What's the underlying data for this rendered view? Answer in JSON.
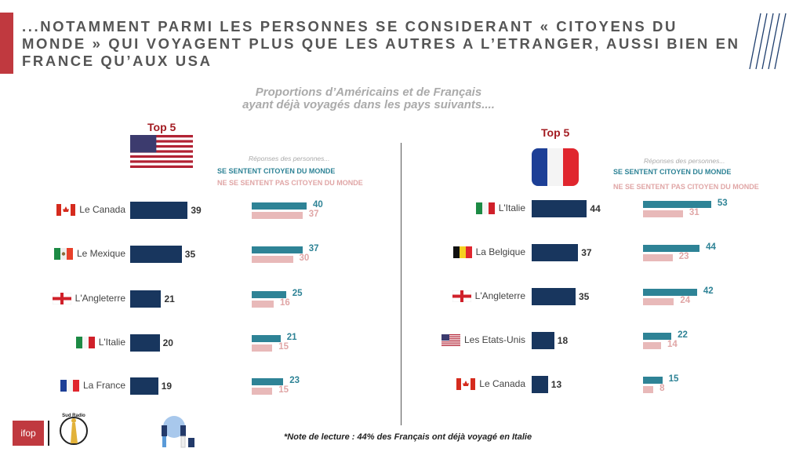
{
  "header": {
    "title": "...NOTAMMENT PARMI LES PERSONNES SE CONSIDERANT « CITOYENS DU MONDE » QUI VOYAGENT PLUS QUE LES AUTRES A L’ETRANGER, AUSSI BIEN EN FRANCE QU’AUX USA",
    "subtitle_line1": "Proportions d’Américains et de Français",
    "subtitle_line2": "ayant déjà voyagés dans les pays suivants...."
  },
  "colors": {
    "accent": "#c0393f",
    "bar": "#18365e",
    "citizen": "#2e8396",
    "non_citizen": "#e8b9b9",
    "top5": "#a31c22"
  },
  "chart_data": [
    {
      "type": "bar",
      "orientation": "horizontal",
      "panel": "USA",
      "heading": "Top 5",
      "flag": "us-flag",
      "legend_title": "Réponses des personnes...",
      "legend": [
        "SE SENTENT CITOYEN DU MONDE",
        "NE SE SENTENT PAS CITOYEN DU MONDE"
      ],
      "categories": [
        "Le Canada",
        "Le Mexique",
        "L'Angleterre",
        "L'Italie",
        "La France"
      ],
      "flags": [
        "canada-flag",
        "mexico-flag",
        "england-flag",
        "italy-flag",
        "france-flag"
      ],
      "values": [
        39,
        35,
        21,
        20,
        19
      ],
      "series": [
        {
          "name": "SE SENTENT CITOYEN DU MONDE",
          "values": [
            40,
            37,
            25,
            21,
            23
          ]
        },
        {
          "name": "NE SE SENTENT PAS CITOYEN DU MONDE",
          "values": [
            37,
            30,
            16,
            15,
            15
          ]
        }
      ]
    },
    {
      "type": "bar",
      "orientation": "horizontal",
      "panel": "France",
      "heading": "Top 5",
      "flag": "france-flag",
      "legend_title": "Réponses des personnes...",
      "legend": [
        "SE SENTENT CITOYEN DU MONDE",
        "NE SE SENTENT PAS CITOYEN DU MONDE"
      ],
      "categories": [
        "L'Italie",
        "La Belgique",
        "L'Angleterre",
        "Les Etats-Unis",
        "Le Canada"
      ],
      "flags": [
        "italy-flag",
        "belgium-flag",
        "england-flag",
        "us-flag",
        "canada-flag"
      ],
      "values": [
        44,
        37,
        35,
        18,
        13
      ],
      "series": [
        {
          "name": "SE SENTENT CITOYEN DU MONDE",
          "values": [
            53,
            44,
            42,
            22,
            15
          ]
        },
        {
          "name": "NE SE SENTENT PAS CITOYEN DU MONDE",
          "values": [
            31,
            23,
            24,
            14,
            8
          ]
        }
      ]
    }
  ],
  "footer": {
    "note": "*Note de lecture : 44% des Français ont déjà voyagé en Italie",
    "logo1": "ifop",
    "logo2": "Sud Radio"
  }
}
